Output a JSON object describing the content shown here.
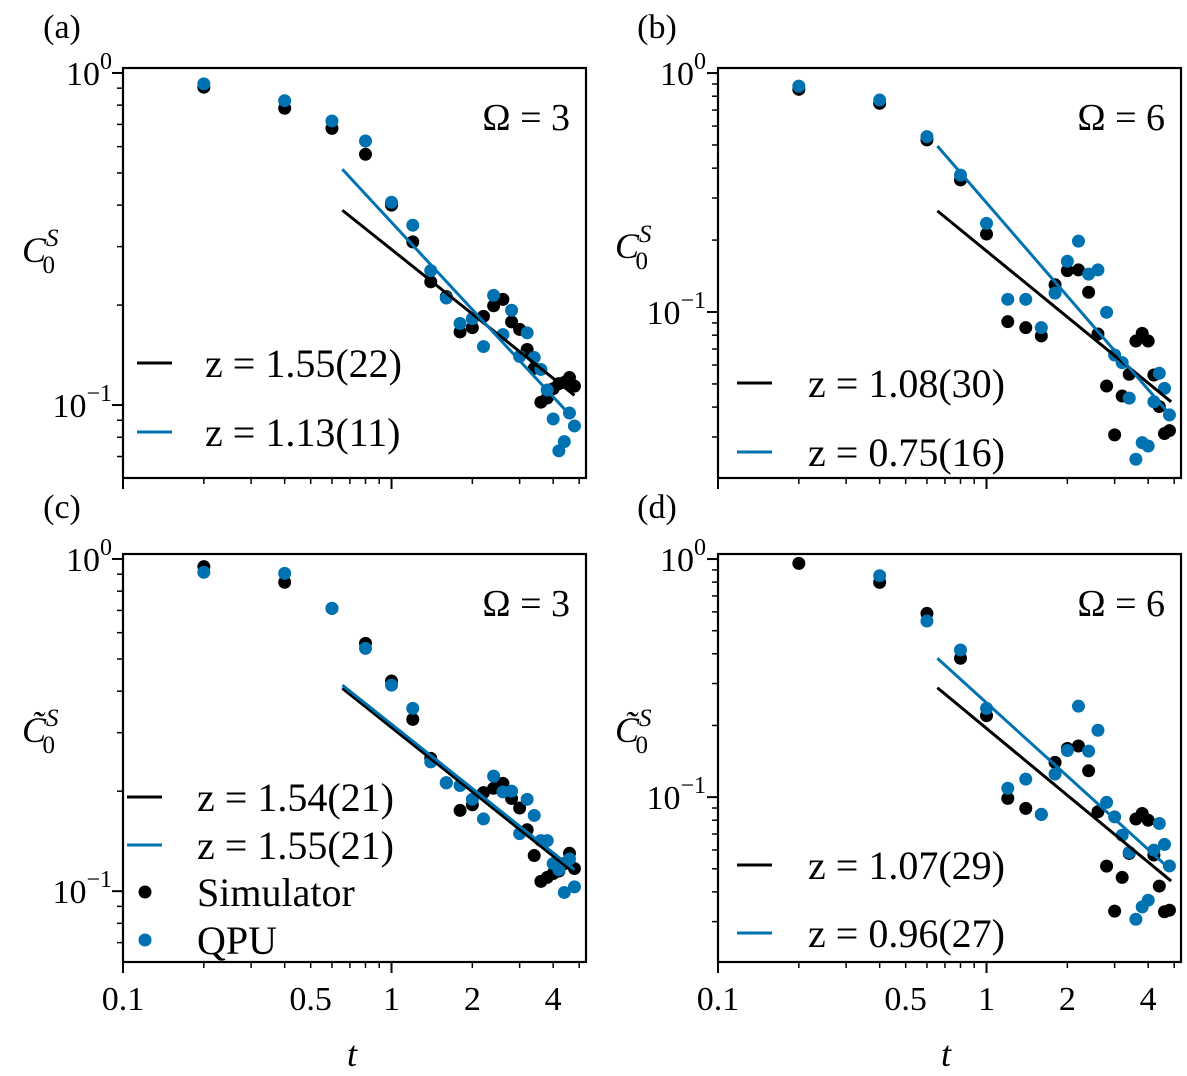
{
  "colors": {
    "simulator": "#000000",
    "qpu": "#0072B2"
  },
  "legend_entries": [
    "Simulator",
    "QPU"
  ],
  "chart_data": [
    {
      "panel": "(a)",
      "type": "scatter",
      "xscale": "log",
      "yscale": "log",
      "annotation": "Ω = 3",
      "ylabel": {
        "base": "C",
        "sub": "0",
        "sup": "S"
      },
      "xlabel": "",
      "xlim": [
        0.1,
        5.3
      ],
      "ylim": [
        0.0603,
        1.035
      ],
      "xticks": [],
      "yticks": [
        {
          "base": "10",
          "exp": "0",
          "value": 1
        },
        {
          "base": "10",
          "exp": "−1",
          "value": 0.1
        }
      ],
      "t": [
        0.2,
        0.4,
        0.6,
        0.8,
        1.0,
        1.2,
        1.4,
        1.6,
        1.8,
        2.0,
        2.2,
        2.4,
        2.6,
        2.8,
        3.0,
        3.2,
        3.4,
        3.6,
        3.8,
        4.0,
        4.2,
        4.4,
        4.6,
        4.8
      ],
      "series": [
        {
          "name": "Simulator",
          "color": "#000000",
          "y": [
            0.906,
            0.783,
            0.681,
            0.569,
            0.4,
            0.31,
            0.235,
            0.212,
            0.166,
            0.171,
            0.185,
            0.199,
            0.208,
            0.178,
            0.169,
            0.147,
            0.129,
            0.102,
            0.105,
            0.112,
            0.116,
            0.117,
            0.121,
            0.114
          ]
        },
        {
          "name": "QPU",
          "color": "#0072B2",
          "y": [
            0.927,
            0.825,
            0.717,
            0.624,
            0.408,
            0.348,
            0.254,
            0.21,
            0.176,
            0.182,
            0.15,
            0.214,
            0.163,
            0.193,
            0.14,
            0.165,
            0.139,
            0.128,
            0.111,
            0.0908,
            0.0728,
            0.0776,
            0.0946,
            0.0865
          ]
        }
      ],
      "fits": [
        {
          "label": "z = 1.55(22)",
          "color": "#000000",
          "z": 1.55,
          "t": [
            0.656,
            4.8
          ],
          "y": [
            0.386,
            0.107
          ]
        },
        {
          "label": "z = 1.13(11)",
          "color": "#0072B2",
          "z": 1.13,
          "t": [
            0.656,
            4.5
          ],
          "y": [
            0.513,
            0.0955
          ]
        }
      ],
      "legend": "lower-left"
    },
    {
      "panel": "(b)",
      "type": "scatter",
      "xscale": "log",
      "yscale": "log",
      "annotation": "Ω = 6",
      "ylabel": {
        "base": "C",
        "sub": "0",
        "sup": "S"
      },
      "xlabel": "",
      "xlim": [
        0.1,
        5.3
      ],
      "ylim": [
        0.0202,
        1.05
      ],
      "xticks": [],
      "yticks": [
        {
          "base": "10",
          "exp": "0",
          "value": 1
        },
        {
          "base": "10",
          "exp": "−1",
          "value": 0.1
        }
      ],
      "t": [
        0.2,
        0.4,
        0.6,
        0.8,
        1.0,
        1.2,
        1.4,
        1.6,
        1.8,
        2.0,
        2.2,
        2.4,
        2.6,
        2.8,
        3.0,
        3.2,
        3.4,
        3.6,
        3.8,
        4.0,
        4.2,
        4.4,
        4.6,
        4.8
      ],
      "series": [
        {
          "name": "Simulator",
          "color": "#000000",
          "y": [
            0.855,
            0.747,
            0.525,
            0.357,
            0.212,
            0.0911,
            0.086,
            0.0794,
            0.13,
            0.149,
            0.15,
            0.121,
            0.0809,
            0.049,
            0.0306,
            0.0445,
            0.0549,
            0.0756,
            0.0814,
            0.0756,
            0.0545,
            0.0402,
            0.031,
            0.0319
          ]
        },
        {
          "name": "QPU",
          "color": "#0072B2",
          "y": [
            0.882,
            0.771,
            0.542,
            0.374,
            0.235,
            0.113,
            0.113,
            0.086,
            0.12,
            0.163,
            0.198,
            0.144,
            0.15,
            0.0997,
            0.0661,
            0.0614,
            0.0436,
            0.0242,
            0.0284,
            0.0275,
            0.0421,
            0.0554,
            0.0479,
            0.0371
          ]
        }
      ],
      "fits": [
        {
          "label": "z = 1.08(30)",
          "color": "#000000",
          "z": 1.08,
          "t": [
            0.656,
            4.87
          ],
          "y": [
            0.265,
            0.0421
          ]
        },
        {
          "label": "z = 0.75(16)",
          "color": "#0072B2",
          "z": 0.75,
          "t": [
            0.656,
            4.83
          ],
          "y": [
            0.495,
            0.0371
          ]
        }
      ],
      "legend": "lower-left"
    },
    {
      "panel": "(c)",
      "type": "scatter",
      "xscale": "log",
      "yscale": "log",
      "annotation": "Ω = 3",
      "ylabel": {
        "base": "C̃",
        "sub": "0",
        "sup": "S"
      },
      "xlabel": "t",
      "xlim": [
        0.1,
        5.3
      ],
      "ylim": [
        0.0612,
        1.035
      ],
      "xticks": [
        {
          "label": "0.1",
          "value": 0.1
        },
        {
          "label": "0.5",
          "value": 0.5
        },
        {
          "label": "1",
          "value": 1
        },
        {
          "label": "2",
          "value": 2
        },
        {
          "label": "4",
          "value": 4
        }
      ],
      "yticks": [
        {
          "base": "10",
          "exp": "0",
          "value": 1
        },
        {
          "base": "10",
          "exp": "−1",
          "value": 0.1
        }
      ],
      "t": [
        0.2,
        0.4,
        0.6,
        0.8,
        1.0,
        1.2,
        1.4,
        1.6,
        1.8,
        2.0,
        2.2,
        2.4,
        2.6,
        2.8,
        3.0,
        3.2,
        3.4,
        3.6,
        3.8,
        4.0,
        4.2,
        4.4,
        4.6,
        4.8
      ],
      "series": [
        {
          "name": "Simulator",
          "color": "#000000",
          "y": [
            0.948,
            0.851,
            0.71,
            0.557,
            0.429,
            0.329,
            0.251,
            0.212,
            0.175,
            0.182,
            0.198,
            0.204,
            0.211,
            0.19,
            0.178,
            0.153,
            0.128,
            0.107,
            0.11,
            0.113,
            0.115,
            0.121,
            0.13,
            0.117
          ]
        },
        {
          "name": "QPU",
          "color": "#0072B2",
          "y": [
            0.912,
            0.905,
            0.71,
            0.538,
            0.417,
            0.355,
            0.245,
            0.212,
            0.208,
            0.189,
            0.165,
            0.222,
            0.199,
            0.2,
            0.149,
            0.189,
            0.169,
            0.142,
            0.142,
            0.121,
            0.116,
            0.0991,
            0.125,
            0.103
          ]
        }
      ],
      "fits": [
        {
          "label": "z = 1.54(21)",
          "color": "#000000",
          "z": 1.54,
          "t": [
            0.656,
            4.76
          ],
          "y": [
            0.408,
            0.114
          ]
        },
        {
          "label": "z = 1.55(21)",
          "color": "#0072B2",
          "z": 1.55,
          "t": [
            0.656,
            4.8
          ],
          "y": [
            0.417,
            0.116
          ]
        }
      ],
      "legend": "lower-left"
    },
    {
      "panel": "(d)",
      "type": "scatter",
      "xscale": "log",
      "yscale": "log",
      "annotation": "Ω = 6",
      "ylabel": {
        "base": "C̃",
        "sub": "0",
        "sup": "S"
      },
      "xlabel": "t",
      "xlim": [
        0.1,
        5.3
      ],
      "ylim": [
        0.0203,
        1.05
      ],
      "xticks": [
        {
          "label": "0.1",
          "value": 0.1
        },
        {
          "label": "0.5",
          "value": 0.5
        },
        {
          "label": "1",
          "value": 1
        },
        {
          "label": "2",
          "value": 2
        },
        {
          "label": "4",
          "value": 4
        }
      ],
      "yticks": [
        {
          "base": "10",
          "exp": "0",
          "value": 1
        },
        {
          "base": "10",
          "exp": "−1",
          "value": 0.1
        }
      ],
      "t": [
        0.2,
        0.4,
        0.6,
        0.8,
        1.0,
        1.2,
        1.4,
        1.6,
        1.8,
        2.0,
        2.2,
        2.4,
        2.6,
        2.8,
        3.0,
        3.2,
        3.4,
        3.6,
        3.8,
        4.0,
        4.2,
        4.4,
        4.6,
        4.8
      ],
      "series": [
        {
          "name": "Simulator",
          "color": "#000000",
          "y": [
            0.959,
            0.798,
            0.591,
            0.383,
            0.22,
            0.0988,
            0.0897,
            0.0846,
            0.14,
            0.16,
            0.164,
            0.129,
            0.0868,
            0.0513,
            0.0332,
            0.046,
            0.058,
            0.0809,
            0.0854,
            0.08,
            0.0571,
            0.0423,
            0.033,
            0.0335
          ]
        },
        {
          "name": "QPU",
          "color": "#0072B2",
          "y": [
            null,
            0.851,
            0.549,
            0.415,
            0.236,
            0.109,
            0.119,
            0.0846,
            0.125,
            0.157,
            0.241,
            0.156,
            0.191,
            0.095,
            0.0826,
            0.0692,
            0.0586,
            0.0307,
            0.0346,
            0.0369,
            0.0599,
            0.0775,
            0.0633,
            0.0514
          ]
        }
      ],
      "fits": [
        {
          "label": "z = 1.07(29)",
          "color": "#000000",
          "z": 1.07,
          "t": [
            0.656,
            4.87
          ],
          "y": [
            0.288,
            0.0444
          ]
        },
        {
          "label": "z = 0.96(27)",
          "color": "#0072B2",
          "z": 0.96,
          "t": [
            0.656,
            4.87
          ],
          "y": [
            0.383,
            0.0493
          ]
        }
      ],
      "legend": "lower-left"
    }
  ]
}
